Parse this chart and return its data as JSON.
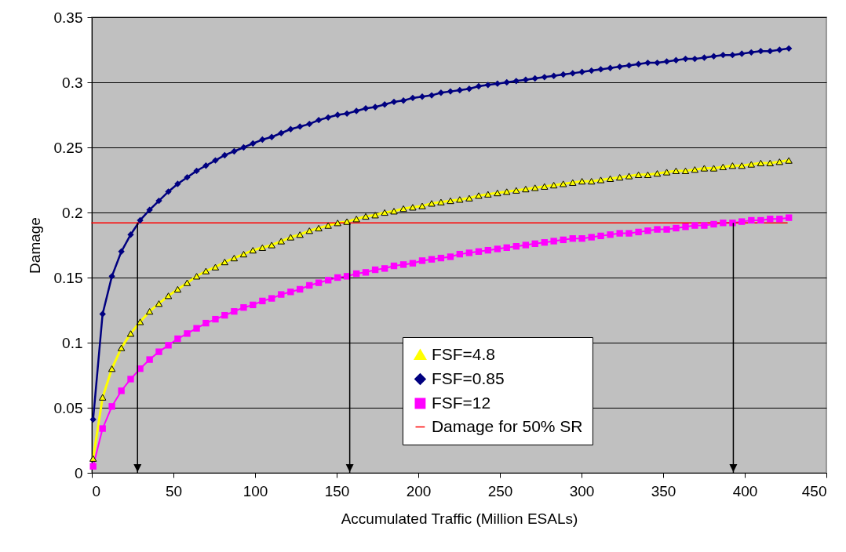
{
  "chart_data": {
    "type": "line",
    "xlabel": "Accumulated Traffic (Million ESALs)",
    "ylabel": "Damage",
    "xlim": [
      0,
      450
    ],
    "xticks": [
      0,
      50,
      100,
      150,
      200,
      250,
      300,
      350,
      400,
      450
    ],
    "ylim": [
      0,
      0.35
    ],
    "yticks": [
      0,
      0.05,
      0.1,
      0.15,
      0.2,
      0.25,
      0.3,
      0.35
    ],
    "grid": "y",
    "legend": "bottom",
    "x": [
      0.8,
      6.6,
      12.3,
      18.1,
      23.8,
      29.6,
      35.4,
      41.1,
      46.9,
      52.6,
      58.4,
      64.2,
      69.9,
      75.7,
      81.4,
      87.2,
      93.0,
      98.7,
      104.5,
      110.2,
      116.0,
      121.8,
      127.5,
      133.3,
      139.0,
      144.8,
      150.6,
      156.3,
      162.1,
      167.8,
      173.6,
      179.4,
      185.1,
      190.9,
      196.6,
      202.4,
      208.2,
      213.9,
      219.7,
      225.4,
      231.2,
      237.0,
      242.7,
      248.5,
      254.2,
      260.0,
      265.8,
      271.5,
      277.3,
      283.0,
      288.8,
      294.6,
      300.3,
      306.1,
      311.8,
      317.6,
      323.4,
      329.1,
      334.9,
      340.6,
      346.4,
      352.2,
      357.9,
      363.7,
      369.4,
      375.2,
      381.0,
      386.7,
      392.5,
      398.2,
      404.0,
      409.8,
      415.5,
      421.3,
      427.0
    ],
    "series": [
      {
        "name": "FSF=4.8",
        "color": "#ffff00",
        "marker": "triangle",
        "values": [
          0.011,
          0.058,
          0.08,
          0.096,
          0.107,
          0.116,
          0.124,
          0.13,
          0.136,
          0.141,
          0.146,
          0.151,
          0.155,
          0.158,
          0.162,
          0.165,
          0.168,
          0.171,
          0.173,
          0.175,
          0.178,
          0.181,
          0.183,
          0.186,
          0.188,
          0.19,
          0.192,
          0.193,
          0.195,
          0.197,
          0.198,
          0.2,
          0.201,
          0.203,
          0.204,
          0.205,
          0.207,
          0.208,
          0.209,
          0.21,
          0.211,
          0.213,
          0.214,
          0.215,
          0.216,
          0.217,
          0.218,
          0.219,
          0.22,
          0.221,
          0.222,
          0.223,
          0.224,
          0.224,
          0.225,
          0.226,
          0.227,
          0.228,
          0.229,
          0.229,
          0.23,
          0.231,
          0.232,
          0.232,
          0.233,
          0.234,
          0.234,
          0.235,
          0.236,
          0.236,
          0.237,
          0.238,
          0.238,
          0.239,
          0.24
        ]
      },
      {
        "name": "FSF=0.85",
        "color": "#000080",
        "marker": "diamond",
        "values": [
          0.041,
          0.122,
          0.151,
          0.17,
          0.183,
          0.194,
          0.202,
          0.209,
          0.216,
          0.222,
          0.227,
          0.232,
          0.236,
          0.24,
          0.244,
          0.247,
          0.25,
          0.253,
          0.256,
          0.258,
          0.261,
          0.264,
          0.266,
          0.268,
          0.271,
          0.273,
          0.275,
          0.276,
          0.278,
          0.28,
          0.281,
          0.283,
          0.285,
          0.286,
          0.288,
          0.289,
          0.29,
          0.292,
          0.293,
          0.294,
          0.295,
          0.297,
          0.298,
          0.299,
          0.3,
          0.301,
          0.302,
          0.303,
          0.304,
          0.305,
          0.306,
          0.307,
          0.308,
          0.309,
          0.31,
          0.311,
          0.312,
          0.313,
          0.314,
          0.315,
          0.315,
          0.316,
          0.317,
          0.318,
          0.318,
          0.319,
          0.32,
          0.321,
          0.321,
          0.322,
          0.323,
          0.324,
          0.324,
          0.325,
          0.326
        ]
      },
      {
        "name": "FSF=12",
        "color": "#ff00ff",
        "marker": "square",
        "values": [
          0.005,
          0.034,
          0.051,
          0.063,
          0.072,
          0.08,
          0.087,
          0.093,
          0.098,
          0.103,
          0.107,
          0.111,
          0.115,
          0.118,
          0.121,
          0.124,
          0.127,
          0.129,
          0.132,
          0.134,
          0.137,
          0.139,
          0.141,
          0.144,
          0.146,
          0.148,
          0.15,
          0.151,
          0.153,
          0.154,
          0.156,
          0.157,
          0.159,
          0.16,
          0.161,
          0.163,
          0.164,
          0.165,
          0.166,
          0.168,
          0.169,
          0.17,
          0.171,
          0.172,
          0.173,
          0.174,
          0.175,
          0.176,
          0.177,
          0.178,
          0.179,
          0.18,
          0.18,
          0.181,
          0.182,
          0.183,
          0.184,
          0.184,
          0.185,
          0.186,
          0.187,
          0.187,
          0.188,
          0.189,
          0.19,
          0.19,
          0.191,
          0.192,
          0.192,
          0.193,
          0.194,
          0.194,
          0.195,
          0.195,
          0.196
        ]
      },
      {
        "name": "Damage for 50% SR",
        "color": "#ff0000",
        "marker": "none",
        "x": [
          0,
          426
        ],
        "values": [
          0.192,
          0.192
        ]
      }
    ],
    "ref_lines": [
      {
        "axis": "x",
        "value": 28,
        "color": "#000000"
      },
      {
        "axis": "x",
        "value": 158,
        "color": "#000000"
      },
      {
        "axis": "x",
        "value": 393,
        "color": "#000000"
      }
    ]
  }
}
